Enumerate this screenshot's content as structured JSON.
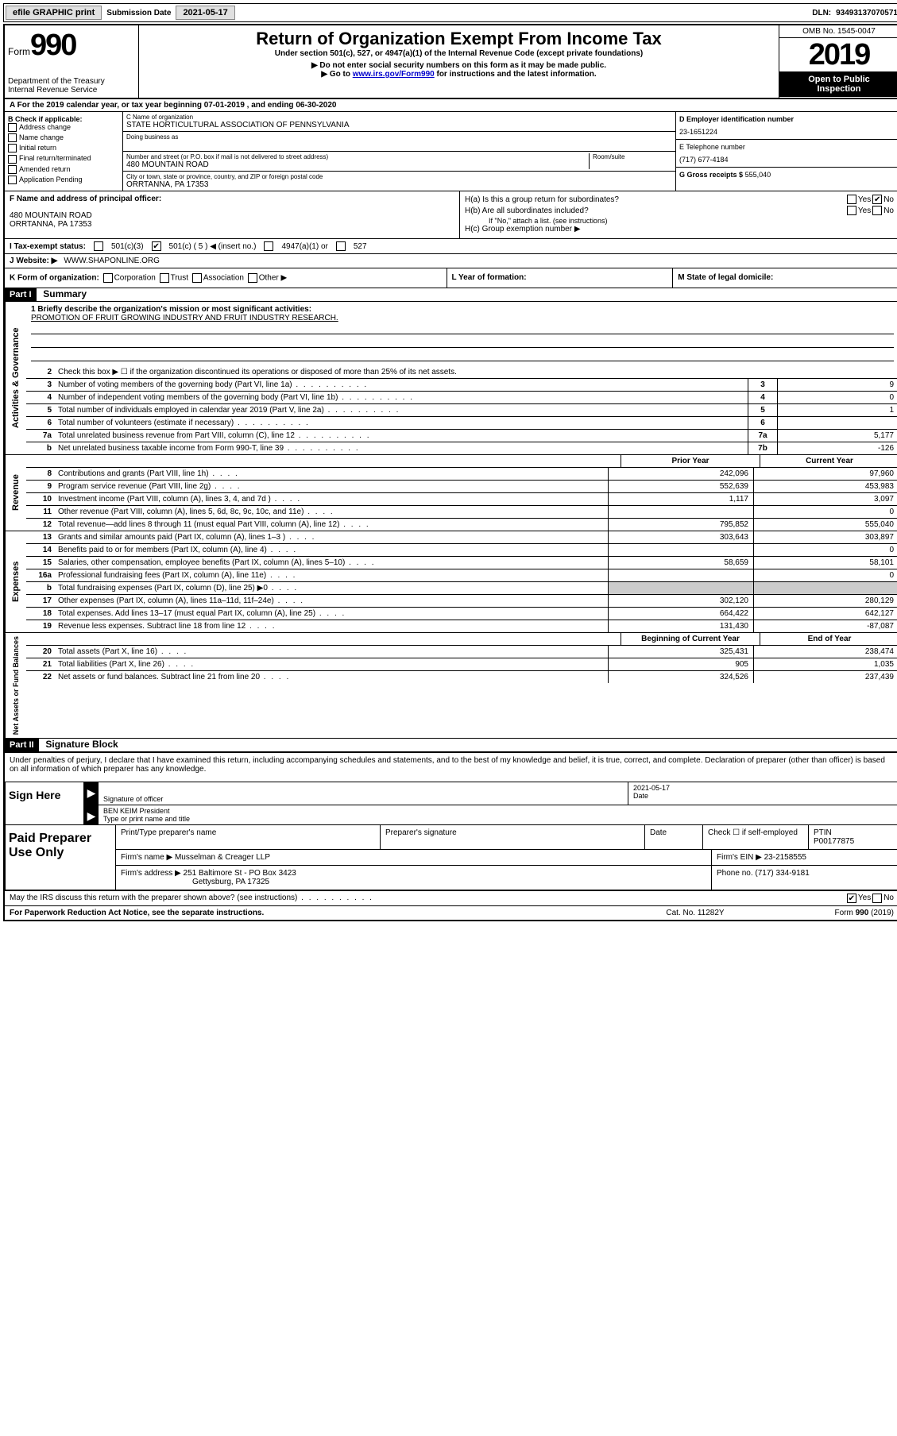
{
  "topbar": {
    "efile": "efile GRAPHIC print",
    "sub_label": "Submission Date",
    "sub_date": "2021-05-17",
    "dln_label": "DLN:",
    "dln": "93493137070571"
  },
  "header": {
    "form_word": "Form",
    "form_no": "990",
    "dept1": "Department of the Treasury",
    "dept2": "Internal Revenue Service",
    "title": "Return of Organization Exempt From Income Tax",
    "subtitle": "Under section 501(c), 527, or 4947(a)(1) of the Internal Revenue Code (except private foundations)",
    "note1": "▶ Do not enter social security numbers on this form as it may be made public.",
    "note2_pre": "▶ Go to ",
    "note2_link": "www.irs.gov/Form990",
    "note2_post": " for instructions and the latest information.",
    "omb": "OMB No. 1545-0047",
    "year": "2019",
    "inspection1": "Open to Public",
    "inspection2": "Inspection"
  },
  "rowA": {
    "text": "A For the 2019 calendar year, or tax year beginning 07-01-2019   , and ending 06-30-2020"
  },
  "colB": {
    "heading": "B Check if applicable:",
    "opts": [
      "Address change",
      "Name change",
      "Initial return",
      "Final return/terminated",
      "Amended return",
      "Application Pending"
    ]
  },
  "colC": {
    "name_label": "C Name of organization",
    "name": "STATE HORTICULTURAL ASSOCIATION OF PENNSYLVANIA",
    "dba_label": "Doing business as",
    "addr_label": "Number and street (or P.O. box if mail is not delivered to street address)",
    "room_label": "Room/suite",
    "addr": "480 MOUNTAIN ROAD",
    "city_label": "City or town, state or province, country, and ZIP or foreign postal code",
    "city": "ORRTANNA, PA  17353"
  },
  "colD": {
    "ein_label": "D Employer identification number",
    "ein": "23-1651224",
    "tel_label": "E Telephone number",
    "tel": "(717) 677-4184",
    "gross_label": "G Gross receipts $",
    "gross": "555,040"
  },
  "rowF": {
    "label": "F  Name and address of principal officer:",
    "addr1": "480 MOUNTAIN ROAD",
    "addr2": "ORRTANNA, PA  17353"
  },
  "rowH": {
    "a_label": "H(a)  Is this a group return for subordinates?",
    "b_label": "H(b)  Are all subordinates included?",
    "b_note": "If \"No,\" attach a list. (see instructions)",
    "c_label": "H(c)  Group exemption number ▶",
    "yes": "Yes",
    "no": "No"
  },
  "rowI": {
    "label": "I   Tax-exempt status:",
    "opt1": "501(c)(3)",
    "opt2": "501(c) ( 5 ) ◀ (insert no.)",
    "opt3": "4947(a)(1) or",
    "opt4": "527"
  },
  "rowJ": {
    "label": "J   Website: ▶",
    "val": "WWW.SHAPONLINE.ORG"
  },
  "rowK": {
    "label": "K Form of organization:",
    "opts": [
      "Corporation",
      "Trust",
      "Association",
      "Other ▶"
    ],
    "l_label": "L Year of formation:",
    "m_label": "M State of legal domicile:"
  },
  "part1": {
    "header": "Part I",
    "title": "Summary",
    "vert1": "Activities & Governance",
    "vert2": "Revenue",
    "vert3": "Expenses",
    "vert4": "Net Assets or Fund Balances",
    "line1_label": "1  Briefly describe the organization's mission or most significant activities:",
    "line1_val": "PROMOTION OF FRUIT GROWING INDUSTRY AND FRUIT INDUSTRY RESEARCH.",
    "line2": "Check this box ▶ ☐  if the organization discontinued its operations or disposed of more than 25% of its net assets.",
    "gov_lines": [
      {
        "n": "3",
        "desc": "Number of voting members of the governing body (Part VI, line 1a)",
        "box": "3",
        "val": "9"
      },
      {
        "n": "4",
        "desc": "Number of independent voting members of the governing body (Part VI, line 1b)",
        "box": "4",
        "val": "0"
      },
      {
        "n": "5",
        "desc": "Total number of individuals employed in calendar year 2019 (Part V, line 2a)",
        "box": "5",
        "val": "1"
      },
      {
        "n": "6",
        "desc": "Total number of volunteers (estimate if necessary)",
        "box": "6",
        "val": ""
      },
      {
        "n": "7a",
        "desc": "Total unrelated business revenue from Part VIII, column (C), line 12",
        "box": "7a",
        "val": "5,177"
      },
      {
        "n": "b",
        "desc": "Net unrelated business taxable income from Form 990-T, line 39",
        "box": "7b",
        "val": "-126"
      }
    ],
    "col_prior": "Prior Year",
    "col_current": "Current Year",
    "rev_lines": [
      {
        "n": "8",
        "desc": "Contributions and grants (Part VIII, line 1h)",
        "prior": "242,096",
        "cur": "97,960"
      },
      {
        "n": "9",
        "desc": "Program service revenue (Part VIII, line 2g)",
        "prior": "552,639",
        "cur": "453,983"
      },
      {
        "n": "10",
        "desc": "Investment income (Part VIII, column (A), lines 3, 4, and 7d )",
        "prior": "1,117",
        "cur": "3,097"
      },
      {
        "n": "11",
        "desc": "Other revenue (Part VIII, column (A), lines 5, 6d, 8c, 9c, 10c, and 11e)",
        "prior": "",
        "cur": "0"
      },
      {
        "n": "12",
        "desc": "Total revenue—add lines 8 through 11 (must equal Part VIII, column (A), line 12)",
        "prior": "795,852",
        "cur": "555,040"
      }
    ],
    "exp_lines": [
      {
        "n": "13",
        "desc": "Grants and similar amounts paid (Part IX, column (A), lines 1–3 )",
        "prior": "303,643",
        "cur": "303,897"
      },
      {
        "n": "14",
        "desc": "Benefits paid to or for members (Part IX, column (A), line 4)",
        "prior": "",
        "cur": "0"
      },
      {
        "n": "15",
        "desc": "Salaries, other compensation, employee benefits (Part IX, column (A), lines 5–10)",
        "prior": "58,659",
        "cur": "58,101"
      },
      {
        "n": "16a",
        "desc": "Professional fundraising fees (Part IX, column (A), line 11e)",
        "prior": "",
        "cur": "0"
      },
      {
        "n": "b",
        "desc": "Total fundraising expenses (Part IX, column (D), line 25) ▶0",
        "prior": "__shade__",
        "cur": "__shade__"
      },
      {
        "n": "17",
        "desc": "Other expenses (Part IX, column (A), lines 11a–11d, 11f–24e)",
        "prior": "302,120",
        "cur": "280,129"
      },
      {
        "n": "18",
        "desc": "Total expenses. Add lines 13–17 (must equal Part IX, column (A), line 25)",
        "prior": "664,422",
        "cur": "642,127"
      },
      {
        "n": "19",
        "desc": "Revenue less expenses. Subtract line 18 from line 12",
        "prior": "131,430",
        "cur": "-87,087"
      }
    ],
    "col_begin": "Beginning of Current Year",
    "col_end": "End of Year",
    "net_lines": [
      {
        "n": "20",
        "desc": "Total assets (Part X, line 16)",
        "prior": "325,431",
        "cur": "238,474"
      },
      {
        "n": "21",
        "desc": "Total liabilities (Part X, line 26)",
        "prior": "905",
        "cur": "1,035"
      },
      {
        "n": "22",
        "desc": "Net assets or fund balances. Subtract line 21 from line 20",
        "prior": "324,526",
        "cur": "237,439"
      }
    ]
  },
  "part2": {
    "header": "Part II",
    "title": "Signature Block",
    "declaration": "Under penalties of perjury, I declare that I have examined this return, including accompanying schedules and statements, and to the best of my knowledge and belief, it is true, correct, and complete. Declaration of preparer (other than officer) is based on all information of which preparer has any knowledge.",
    "sign_here": "Sign Here",
    "sig_officer": "Signature of officer",
    "sig_date": "2021-05-17",
    "date_label": "Date",
    "officer_name": "BEN KEIM President",
    "type_label": "Type or print name and title",
    "paid_prep": "Paid Preparer Use Only",
    "prep_name_label": "Print/Type preparer's name",
    "prep_sig_label": "Preparer's signature",
    "prep_date_label": "Date",
    "check_self": "Check ☐ if self-employed",
    "ptin_label": "PTIN",
    "ptin": "P00177875",
    "firm_name_label": "Firm's name    ▶",
    "firm_name": "Musselman & Creager LLP",
    "firm_ein_label": "Firm's EIN ▶",
    "firm_ein": "23-2158555",
    "firm_addr_label": "Firm's address ▶",
    "firm_addr1": "251 Baltimore St - PO Box 3423",
    "firm_addr2": "Gettysburg, PA  17325",
    "firm_phone_label": "Phone no.",
    "firm_phone": "(717) 334-9181",
    "discuss": "May the IRS discuss this return with the preparer shown above? (see instructions)",
    "paperwork": "For Paperwork Reduction Act Notice, see the separate instructions.",
    "catno": "Cat. No. 11282Y",
    "formno": "Form 990 (2019)"
  }
}
